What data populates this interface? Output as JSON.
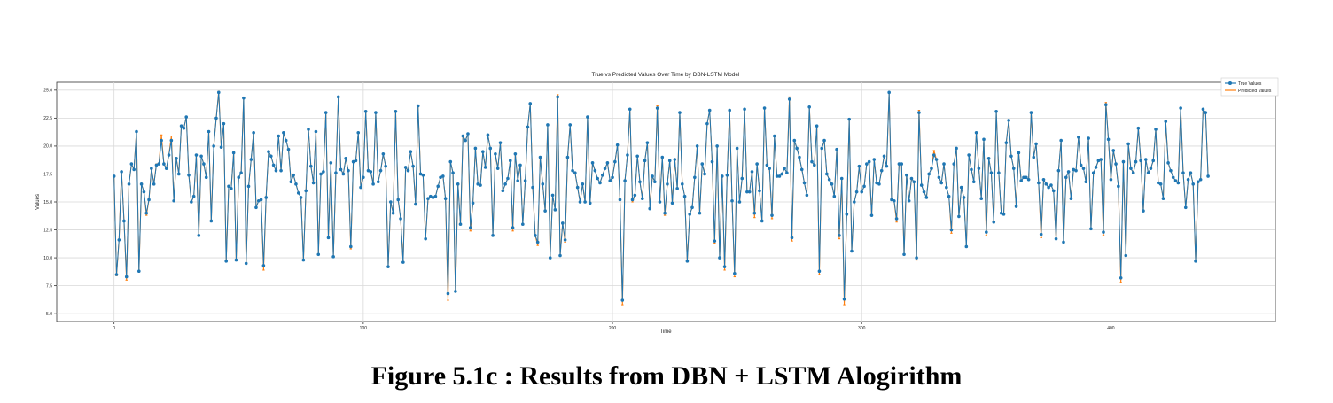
{
  "caption": "Figure 5.1c : Results from DBN + LSTM Alogirithm",
  "chart_data": {
    "type": "line",
    "title": "True vs Predicted Values Over Time by DBN-LSTM Model",
    "xlabel": "Time",
    "ylabel": "Values",
    "xlim": [
      -23,
      466
    ],
    "ylim": [
      4.3,
      25.7
    ],
    "xticks": [
      0,
      100,
      200,
      300,
      400
    ],
    "yticks": [
      5.0,
      7.5,
      10.0,
      12.5,
      15.0,
      17.5,
      20.0,
      22.5,
      25.0
    ],
    "ytick_labels": [
      "5.0",
      "7.5",
      "10.0",
      "12.5",
      "15.0",
      "17.5",
      "20.0",
      "22.5",
      "25.0"
    ],
    "grid": true,
    "legend_position": "top-right",
    "colors": {
      "true": "#1f77b4",
      "predicted": "#ff7f0e"
    },
    "series": [
      {
        "name": "True Values",
        "values": [
          17.3,
          8.5,
          11.6,
          17.7,
          13.3,
          8.3,
          16.6,
          18.4,
          17.9,
          21.3,
          8.8,
          16.6,
          15.9,
          14.0,
          15.2,
          18.0,
          16.6,
          18.3,
          18.4,
          20.5,
          18.4,
          18.0,
          19.2,
          20.5,
          15.1,
          18.9,
          17.5,
          21.8,
          21.6,
          22.6,
          17.4,
          15.0,
          15.5,
          19.2,
          12.0,
          19.1,
          18.4,
          17.2,
          21.3,
          13.3,
          20.0,
          22.5,
          24.8,
          19.9,
          22.0,
          9.7,
          16.4,
          16.2,
          19.4,
          9.8,
          17.2,
          17.6,
          24.3,
          9.5,
          16.4,
          18.8,
          21.2,
          14.5,
          15.1,
          15.2,
          9.3,
          15.4,
          19.5,
          19.1,
          18.3,
          17.8,
          20.9,
          17.8,
          21.2,
          20.5,
          19.7,
          16.8,
          17.4,
          16.6,
          15.8,
          15.4,
          9.8,
          16.0,
          21.5,
          18.2,
          16.7,
          21.3,
          10.3,
          17.5,
          17.7,
          23.0,
          11.8,
          18.5,
          10.1,
          17.6,
          24.4,
          17.9,
          17.5,
          18.9,
          17.8,
          11.0,
          18.6,
          18.7,
          21.2,
          16.3,
          17.2,
          23.1,
          17.8,
          17.7,
          16.6,
          23.0,
          16.8,
          17.8,
          19.3,
          18.2,
          9.2,
          15.0,
          14.0,
          23.1,
          15.2,
          13.5,
          9.6,
          18.1,
          17.8,
          19.5,
          18.2,
          14.8,
          23.6,
          17.5,
          17.4,
          11.7,
          15.3,
          15.5,
          15.4,
          15.5,
          16.4,
          17.2,
          17.3,
          15.3,
          6.8,
          18.6,
          17.6,
          7.0,
          16.6,
          13.0,
          20.9,
          20.5,
          21.1,
          12.7,
          14.9,
          19.8,
          16.6,
          16.5,
          19.5,
          18.1,
          21.0,
          19.8,
          12.0,
          19.3,
          18.0,
          20.3,
          16.0,
          16.6,
          17.1,
          18.7,
          12.7,
          19.3,
          16.9,
          18.3,
          13.0,
          16.9,
          21.7,
          23.8,
          16.3,
          12.0,
          11.4,
          19.0,
          16.6,
          14.2,
          21.9,
          10.0,
          15.6,
          14.3,
          24.4,
          10.2,
          13.1,
          11.6,
          19.0,
          21.9,
          17.8,
          17.6,
          16.3,
          15.0,
          16.6,
          15.0,
          22.6,
          14.9,
          18.5,
          17.8,
          17.1,
          16.7,
          17.4,
          18.0,
          18.5,
          16.9,
          17.2,
          18.6,
          20.1,
          15.2,
          6.2,
          16.9,
          19.2,
          23.3,
          15.2,
          15.6,
          19.1,
          16.8,
          15.3,
          18.7,
          20.3,
          14.4,
          17.3,
          16.8,
          23.4,
          15.0,
          19.0,
          14.0,
          16.6,
          18.7,
          14.9,
          18.8,
          16.2,
          23.0,
          16.6,
          15.5,
          9.7,
          13.9,
          14.5,
          17.2,
          20.0,
          14.0,
          18.4,
          17.5,
          22.0,
          23.2,
          18.6,
          11.5,
          20.0,
          10.0,
          17.3,
          9.2,
          17.4,
          23.2,
          15.1,
          8.6,
          19.8,
          15.0,
          17.1,
          23.3,
          15.9,
          15.9,
          17.7,
          14.0,
          18.4,
          16.0,
          13.3,
          23.4,
          18.3,
          18.0,
          13.8,
          20.9,
          17.3,
          17.3,
          17.5,
          18.0,
          17.6,
          24.2,
          11.8,
          20.5,
          19.8,
          19.0,
          17.9,
          16.7,
          15.6,
          23.5,
          18.6,
          18.3,
          21.8,
          8.8,
          19.8,
          20.5,
          17.5,
          17.0,
          16.6,
          15.5,
          19.7,
          12.0,
          17.1,
          6.3,
          13.9,
          22.4,
          10.6,
          15.0,
          15.9,
          18.2,
          15.9,
          16.4,
          18.4,
          18.6,
          13.8,
          18.8,
          16.7,
          16.6,
          17.8,
          19.1,
          18.2,
          24.8,
          15.2,
          15.1,
          13.5,
          18.4,
          18.4,
          10.3,
          17.4,
          15.1,
          17.1,
          16.8,
          10.0,
          23.0,
          16.5,
          15.9,
          15.4,
          17.5,
          18.0,
          19.2,
          18.8,
          17.2,
          16.7,
          18.4,
          16.3,
          15.5,
          12.5,
          18.4,
          19.8,
          13.7,
          16.3,
          15.4,
          11.0,
          19.2,
          17.9,
          16.8,
          21.2,
          18.0,
          15.3,
          20.6,
          12.3,
          18.9,
          17.6,
          13.2,
          23.1,
          17.6,
          14.0,
          13.9,
          20.3,
          22.3,
          19.1,
          18.0,
          14.6,
          19.4,
          16.9,
          17.2,
          17.2,
          17.0,
          23.0,
          19.0,
          20.2,
          16.7,
          12.1,
          17.0,
          16.6,
          16.3,
          16.5,
          16.0,
          11.7,
          17.8,
          20.5,
          11.4,
          17.2,
          17.7,
          15.3,
          17.9,
          17.8,
          20.8,
          18.3,
          18.0,
          16.8,
          20.7,
          12.6,
          17.6,
          18.1,
          18.7,
          18.8,
          12.3,
          23.7,
          20.6,
          17.0,
          19.6,
          18.4,
          16.4,
          8.2,
          18.6,
          10.2,
          20.2,
          18.0,
          17.6,
          18.6,
          21.6,
          18.7,
          14.2,
          18.8,
          17.6,
          18.0,
          18.7,
          21.5,
          16.7,
          16.6,
          15.3,
          22.2,
          18.5,
          17.8,
          17.2,
          16.9,
          16.7,
          23.4,
          17.6,
          14.5,
          17.0,
          17.6,
          16.6,
          9.7,
          16.8,
          17.0,
          23.3,
          23.0,
          17.3
        ],
        "style": "line-dot"
      },
      {
        "name": "Predicted Values",
        "values": [
          17.3,
          8.4,
          11.6,
          17.7,
          13.3,
          8.0,
          16.6,
          18.4,
          17.9,
          21.3,
          8.8,
          16.6,
          15.9,
          13.8,
          15.2,
          18.0,
          16.6,
          18.4,
          18.4,
          21.0,
          18.4,
          18.0,
          19.2,
          20.9,
          15.1,
          18.9,
          17.5,
          21.8,
          21.6,
          22.6,
          17.4,
          15.0,
          15.5,
          19.2,
          12.0,
          19.1,
          18.4,
          17.2,
          21.3,
          13.3,
          20.0,
          22.5,
          24.9,
          19.9,
          22.0,
          9.7,
          16.4,
          16.2,
          19.4,
          9.8,
          17.2,
          17.6,
          24.3,
          9.5,
          16.4,
          18.8,
          21.2,
          14.5,
          15.1,
          15.2,
          8.9,
          15.4,
          19.5,
          19.1,
          18.3,
          17.8,
          20.9,
          17.8,
          21.2,
          20.5,
          19.7,
          16.8,
          17.4,
          16.6,
          15.8,
          15.4,
          9.8,
          16.0,
          21.5,
          18.2,
          16.7,
          21.3,
          10.3,
          17.5,
          17.7,
          23.0,
          11.8,
          18.5,
          10.1,
          17.6,
          24.4,
          17.9,
          17.5,
          18.9,
          17.8,
          10.8,
          18.6,
          18.7,
          21.2,
          16.3,
          17.2,
          23.1,
          17.8,
          17.7,
          16.6,
          23.0,
          16.8,
          17.8,
          19.3,
          18.2,
          9.2,
          15.0,
          14.0,
          23.1,
          15.2,
          13.5,
          9.6,
          18.1,
          17.8,
          19.5,
          18.2,
          14.8,
          23.6,
          17.5,
          17.4,
          11.7,
          15.3,
          15.5,
          15.4,
          15.5,
          16.4,
          17.2,
          17.3,
          15.3,
          6.2,
          18.6,
          17.6,
          7.0,
          16.6,
          13.0,
          20.9,
          20.5,
          21.1,
          12.4,
          14.9,
          19.8,
          16.6,
          16.5,
          19.5,
          18.1,
          21.0,
          19.8,
          12.0,
          19.3,
          18.0,
          20.3,
          16.0,
          16.6,
          17.1,
          18.7,
          12.4,
          19.3,
          16.9,
          18.3,
          13.0,
          16.9,
          21.7,
          23.8,
          16.3,
          12.0,
          11.1,
          19.0,
          16.6,
          14.2,
          21.9,
          10.0,
          15.6,
          14.3,
          24.6,
          10.2,
          13.1,
          11.4,
          19.0,
          21.9,
          17.8,
          17.6,
          16.3,
          15.0,
          16.6,
          15.0,
          22.6,
          14.9,
          18.5,
          17.8,
          17.1,
          16.7,
          17.4,
          18.0,
          18.5,
          16.9,
          17.2,
          18.6,
          20.1,
          15.2,
          5.8,
          16.9,
          19.2,
          23.3,
          15.0,
          15.6,
          19.1,
          16.8,
          15.3,
          18.7,
          20.3,
          14.4,
          17.3,
          16.8,
          23.6,
          15.0,
          19.0,
          13.8,
          16.6,
          18.7,
          14.9,
          18.8,
          16.2,
          23.0,
          16.6,
          15.5,
          9.7,
          13.9,
          14.5,
          17.2,
          20.0,
          14.0,
          18.4,
          17.5,
          22.0,
          23.2,
          18.6,
          11.3,
          20.0,
          10.0,
          17.3,
          8.9,
          17.4,
          23.2,
          15.1,
          8.3,
          19.8,
          15.0,
          17.1,
          23.3,
          15.9,
          15.9,
          17.7,
          13.6,
          18.4,
          16.0,
          13.3,
          23.4,
          18.3,
          18.0,
          13.5,
          20.9,
          17.3,
          17.3,
          17.5,
          18.0,
          17.6,
          24.4,
          11.5,
          20.5,
          19.8,
          19.0,
          17.9,
          16.7,
          15.6,
          23.5,
          18.6,
          18.3,
          21.8,
          8.5,
          19.8,
          20.5,
          17.5,
          17.0,
          16.6,
          15.5,
          19.7,
          11.7,
          17.1,
          5.8,
          13.9,
          22.4,
          10.6,
          15.0,
          15.9,
          18.2,
          15.9,
          16.4,
          18.4,
          18.6,
          13.8,
          18.8,
          16.7,
          16.6,
          17.8,
          19.1,
          18.2,
          24.8,
          15.2,
          15.1,
          13.2,
          18.4,
          18.4,
          10.3,
          17.4,
          15.1,
          17.1,
          16.8,
          9.8,
          23.2,
          16.5,
          15.9,
          15.4,
          17.5,
          18.0,
          19.6,
          18.8,
          17.2,
          16.7,
          18.4,
          16.3,
          15.5,
          12.2,
          18.4,
          19.8,
          13.7,
          16.3,
          15.4,
          11.0,
          19.2,
          17.9,
          16.8,
          21.2,
          18.0,
          15.3,
          20.6,
          12.0,
          18.9,
          17.6,
          13.2,
          23.1,
          17.6,
          14.0,
          13.9,
          20.3,
          22.3,
          19.1,
          18.0,
          14.6,
          19.4,
          16.9,
          17.2,
          17.2,
          17.0,
          23.0,
          19.0,
          20.2,
          16.7,
          11.8,
          17.0,
          16.6,
          16.3,
          16.5,
          16.0,
          11.7,
          17.8,
          20.5,
          11.4,
          17.2,
          17.7,
          15.3,
          17.9,
          17.8,
          20.8,
          18.3,
          18.0,
          16.8,
          20.7,
          12.6,
          17.6,
          18.1,
          18.7,
          18.8,
          12.0,
          23.9,
          20.6,
          17.0,
          19.6,
          18.4,
          16.4,
          7.8,
          18.6,
          10.2,
          20.2,
          18.0,
          17.6,
          18.6,
          21.6,
          18.7,
          14.2,
          18.8,
          17.6,
          18.0,
          18.7,
          21.5,
          16.7,
          16.6,
          15.3,
          22.2,
          18.5,
          17.8,
          17.2,
          16.9,
          16.7,
          23.4,
          17.6,
          14.5,
          17.0,
          17.6,
          16.6,
          9.7,
          16.8,
          17.0,
          23.3,
          23.0,
          17.3
        ],
        "style": "line-marker"
      }
    ]
  }
}
